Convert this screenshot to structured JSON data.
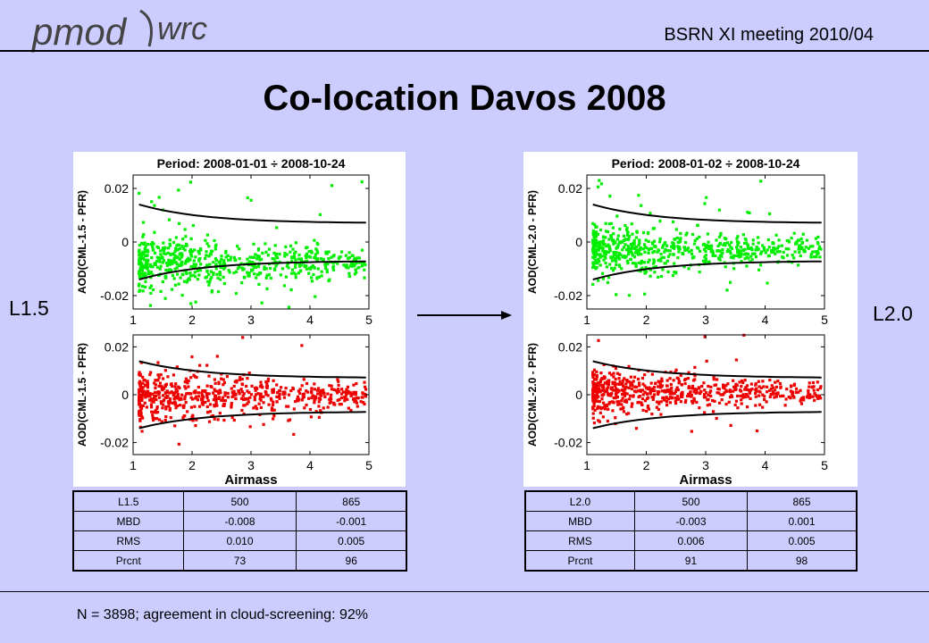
{
  "header": {
    "logo_text_left": "pmod",
    "logo_text_right": "wrc",
    "meeting": "BSRN XI meeting  2010/04"
  },
  "title": "Co-location Davos 2008",
  "labels": {
    "left": "L1.5",
    "right": "L2.0"
  },
  "colors": {
    "background": "#ccccff",
    "green_series": "#00ee00",
    "red_series": "#ee0000",
    "envelope": "#000000"
  },
  "chart_data": [
    {
      "type": "scatter",
      "panel": "left-top",
      "title": "Period: 2008-01-01 ÷ 2008-10-24",
      "xlabel": "",
      "ylabel": "AOD(CML-1.5 - PFR)",
      "xlim": [
        1,
        5
      ],
      "ylim": [
        -0.025,
        0.025
      ],
      "xticks": [
        1,
        2,
        3,
        4,
        5
      ],
      "yticks": [
        -0.02,
        0,
        0.02
      ],
      "series_color": "green",
      "point_cloud": {
        "center": -0.008,
        "spread_low_airmass": 0.012,
        "spread_high_airmass": 0.006
      },
      "envelope": {
        "upper_start": 0.014,
        "upper_end": 0.007,
        "lower_start": -0.014,
        "lower_end": -0.007
      }
    },
    {
      "type": "scatter",
      "panel": "left-bottom",
      "title": "",
      "xlabel": "Airmass",
      "ylabel": "AOD(CML-1.5 - PFR)",
      "xlim": [
        1,
        5
      ],
      "ylim": [
        -0.025,
        0.025
      ],
      "xticks": [
        1,
        2,
        3,
        4,
        5
      ],
      "yticks": [
        -0.02,
        0,
        0.02
      ],
      "series_color": "red",
      "point_cloud": {
        "center": -0.001,
        "spread_low_airmass": 0.014,
        "spread_high_airmass": 0.006
      },
      "envelope": {
        "upper_start": 0.014,
        "upper_end": 0.007,
        "lower_start": -0.014,
        "lower_end": -0.007
      }
    },
    {
      "type": "scatter",
      "panel": "right-top",
      "title": "Period: 2008-01-02 ÷ 2008-10-24",
      "xlabel": "",
      "ylabel": "AOD(CML-2.0 - PFR)",
      "xlim": [
        1,
        5
      ],
      "ylim": [
        -0.025,
        0.025
      ],
      "xticks": [
        1,
        2,
        3,
        4,
        5
      ],
      "yticks": [
        -0.02,
        0,
        0.02
      ],
      "series_color": "green",
      "point_cloud": {
        "center": -0.003,
        "spread_low_airmass": 0.012,
        "spread_high_airmass": 0.005
      },
      "envelope": {
        "upper_start": 0.014,
        "upper_end": 0.007,
        "lower_start": -0.014,
        "lower_end": -0.007
      }
    },
    {
      "type": "scatter",
      "panel": "right-bottom",
      "title": "",
      "xlabel": "Airmass",
      "ylabel": "AOD(CML-2.0 - PFR)",
      "xlim": [
        1,
        5
      ],
      "ylim": [
        -0.025,
        0.025
      ],
      "xticks": [
        1,
        2,
        3,
        4,
        5
      ],
      "yticks": [
        -0.02,
        0,
        0.02
      ],
      "series_color": "red",
      "point_cloud": {
        "center": 0.001,
        "spread_low_airmass": 0.012,
        "spread_high_airmass": 0.005
      },
      "envelope": {
        "upper_start": 0.014,
        "upper_end": 0.007,
        "lower_start": -0.014,
        "lower_end": -0.007
      }
    }
  ],
  "tables": {
    "left": [
      [
        "L1.5",
        "500",
        "865"
      ],
      [
        "MBD",
        "-0.008",
        "-0.001"
      ],
      [
        "RMS",
        "0.010",
        "0.005"
      ],
      [
        "Prcnt",
        "73",
        "96"
      ]
    ],
    "right": [
      [
        "L2.0",
        "500",
        "865"
      ],
      [
        "MBD",
        "-0.003",
        "0.001"
      ],
      [
        "RMS",
        "0.006",
        "0.005"
      ],
      [
        "Prcnt",
        "91",
        "98"
      ]
    ]
  },
  "footer": "N = 3898;   agreement in cloud-screening: 92%"
}
